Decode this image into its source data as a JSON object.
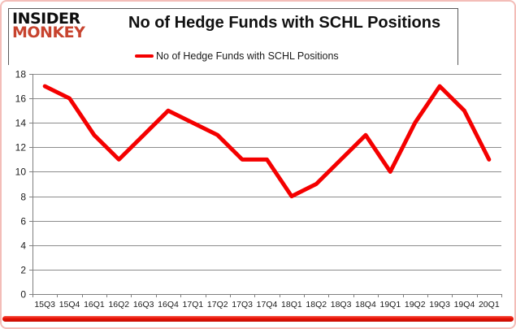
{
  "logo": {
    "line1": "INSIDER",
    "line2": "MONKEY",
    "line2_color": "#c7432e"
  },
  "header": {
    "title": "No of Hedge Funds with SCHL Positions"
  },
  "legend": {
    "label": "No of Hedge Funds with SCHL Positions",
    "swatch_color": "#f40000"
  },
  "colors": {
    "series_red": "#f40000",
    "gridline_gray": "#8c8c8c",
    "axis_gray": "#7f7f7f",
    "label_color": "#1a1a1a",
    "outer_border_pink": "#f3bdb8",
    "bottom_bar_red": "#e71103",
    "header_border_gray": "#5a5a5a"
  },
  "chart_data": {
    "type": "line",
    "title": "No of Hedge Funds with SCHL Positions",
    "categories": [
      "15Q3",
      "15Q4",
      "16Q1",
      "16Q2",
      "16Q3",
      "16Q4",
      "17Q1",
      "17Q2",
      "17Q3",
      "17Q4",
      "18Q1",
      "18Q2",
      "18Q3",
      "18Q4",
      "19Q1",
      "19Q2",
      "19Q3",
      "19Q4",
      "20Q1"
    ],
    "series": [
      {
        "name": "No of Hedge Funds with SCHL Positions",
        "color": "#f40000",
        "values": [
          17,
          16,
          13,
          11,
          13,
          15,
          14,
          13,
          11,
          11,
          8,
          9,
          11,
          13,
          10,
          14,
          17,
          15,
          11
        ]
      }
    ],
    "xlabel": "",
    "ylabel": "",
    "ylim": [
      0,
      18
    ],
    "ytick_step": 2,
    "grid": true,
    "legend_position": "top"
  }
}
